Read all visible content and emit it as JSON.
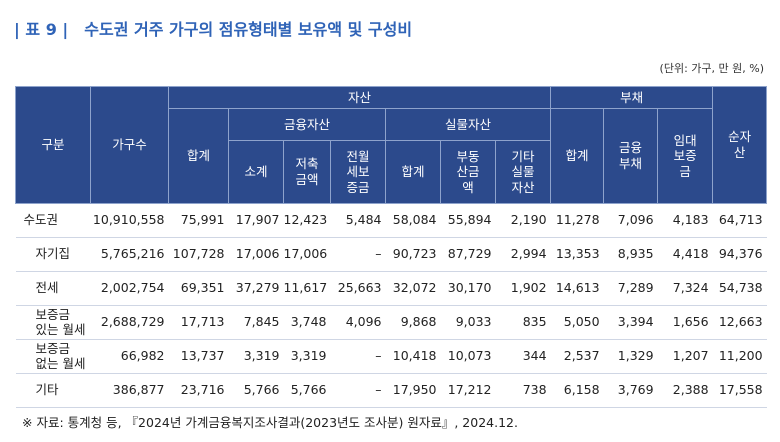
{
  "header": {
    "label": "| 표 9 |",
    "title": "수도권 거주 가구의 점유형태별 보유액 및 구성비",
    "unit": "(단위: 가구, 만 원, %)"
  },
  "table": {
    "head": {
      "row1": [
        "구분",
        "가구수",
        "자산",
        "부채",
        "순자\n산"
      ],
      "row2": [
        "합계",
        "금융자산",
        "실물자산",
        "합계",
        "금융\n부채",
        "임대\n보증\n금"
      ],
      "row3": [
        "소계",
        "저축\n금액",
        "전월\n세보\n증금",
        "합계",
        "부동\n산금\n액",
        "기타\n실물\n자산"
      ]
    },
    "rows": [
      [
        "수도권",
        "10,910,558",
        "75,991",
        "17,907",
        "12,423",
        "5,484",
        "58,084",
        "55,894",
        "2,190",
        "11,278",
        "7,096",
        "4,183",
        "64,713"
      ],
      [
        "자기집",
        "5,765,216",
        "107,728",
        "17,006",
        "17,006",
        "–",
        "90,723",
        "87,729",
        "2,994",
        "13,353",
        "8,935",
        "4,418",
        "94,376"
      ],
      [
        "전세",
        "2,002,754",
        "69,351",
        "37,279",
        "11,617",
        "25,663",
        "32,072",
        "30,170",
        "1,902",
        "14,613",
        "7,289",
        "7,324",
        "54,738"
      ],
      [
        "보증금\n있는 월세",
        "2,688,729",
        "17,713",
        "7,845",
        "3,748",
        "4,096",
        "9,868",
        "9,033",
        "835",
        "5,050",
        "3,394",
        "1,656",
        "12,663"
      ],
      [
        "보증금\n없는 월세",
        "66,982",
        "13,737",
        "3,319",
        "3,319",
        "–",
        "10,418",
        "10,073",
        "344",
        "2,537",
        "1,329",
        "1,207",
        "11,200"
      ],
      [
        "기타",
        "386,877",
        "23,716",
        "5,766",
        "5,766",
        "–",
        "17,950",
        "17,212",
        "738",
        "6,158",
        "3,769",
        "2,388",
        "17,558"
      ]
    ]
  },
  "footnote": "※ 자료: 통계청 등, 『2024년 가계금융복지조사결과(2023년도 조사분) 원자료』, 2024.12."
}
